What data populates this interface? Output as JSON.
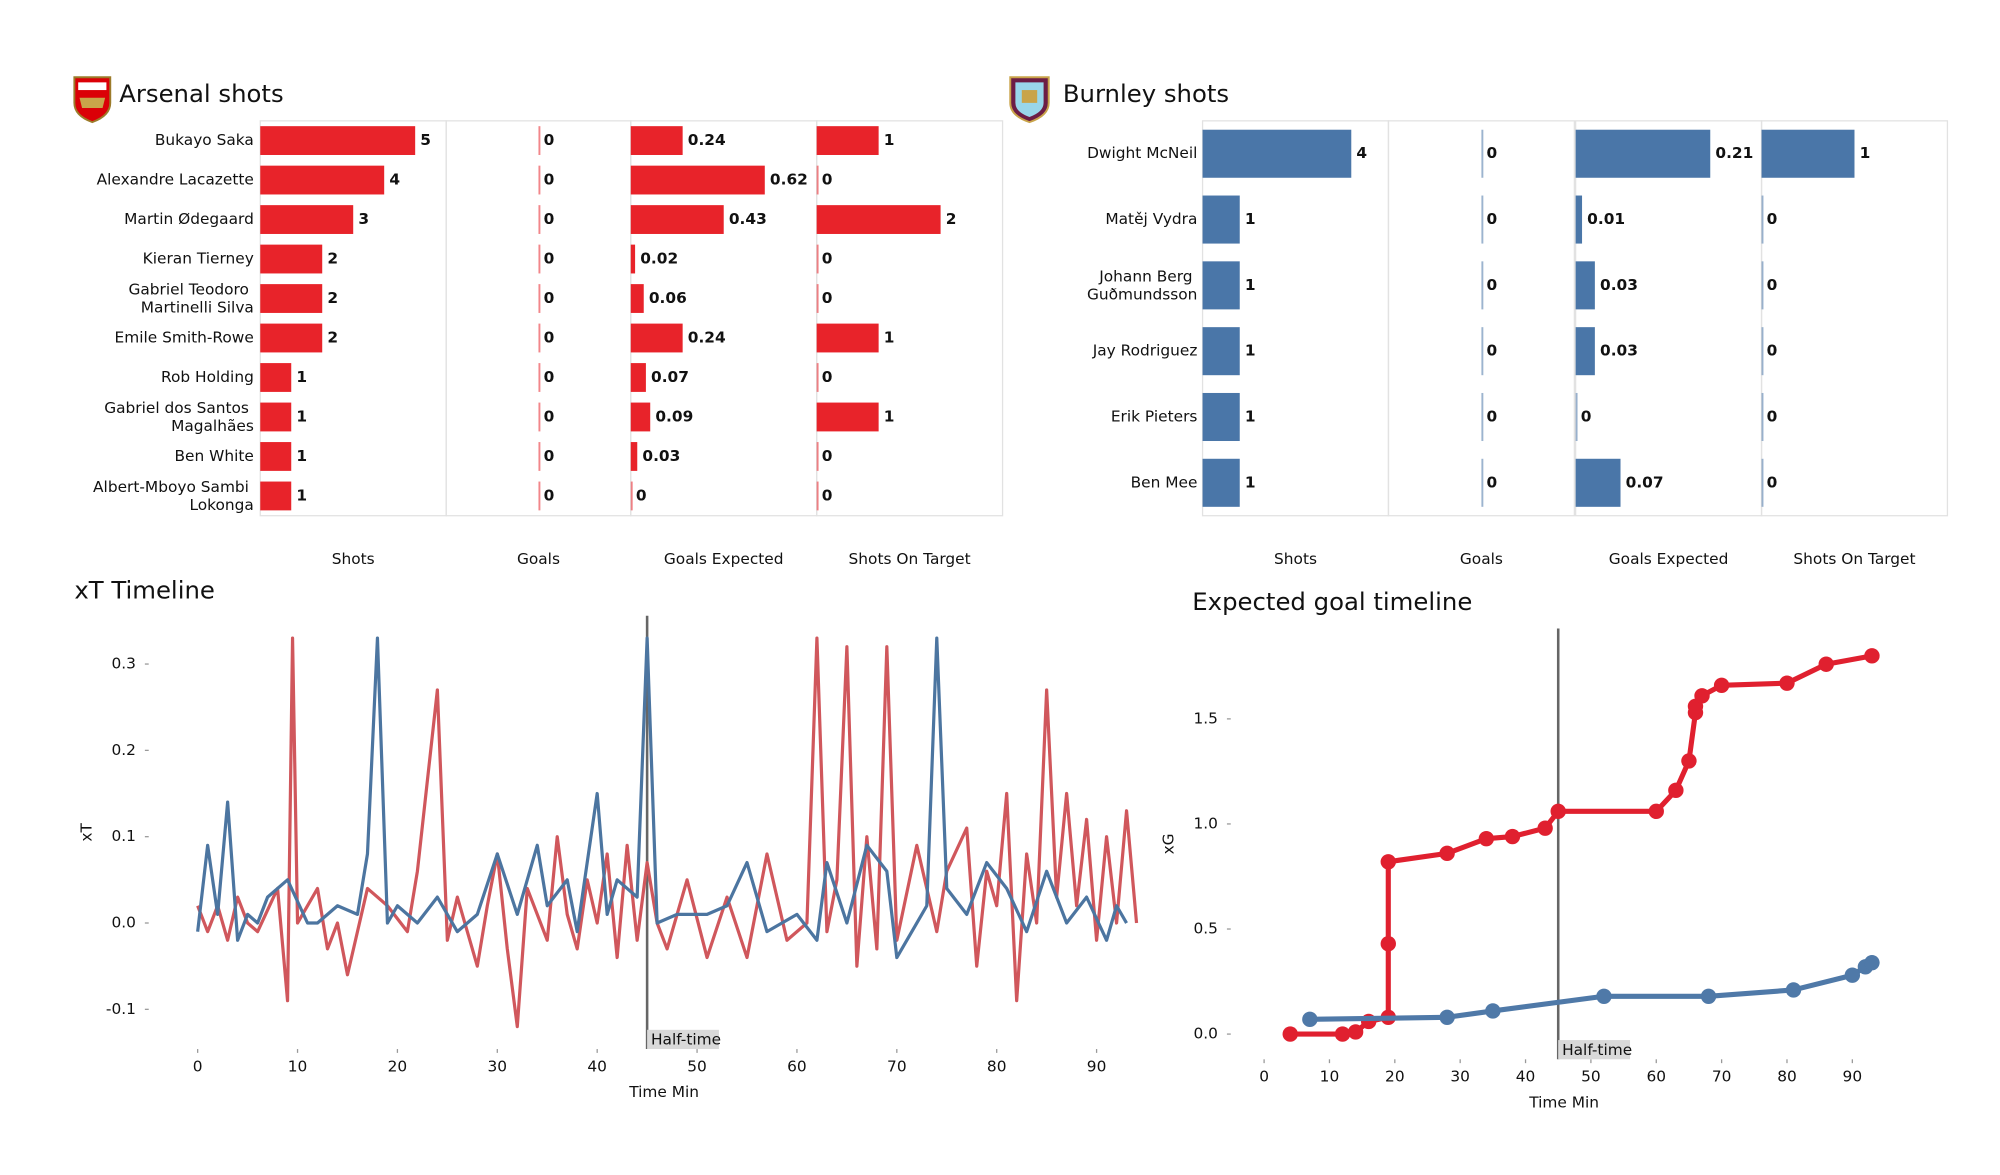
{
  "chart_data": [
    {
      "type": "bar",
      "title": "Arsenal shots",
      "color": "#e8232a",
      "categories": [
        "Bukayo Saka",
        "Alexandre Lacazette",
        "Martin Ødegaard",
        "Kieran Tierney",
        "Gabriel Teodoro Martinelli Silva",
        "Emile Smith-Rowe",
        "Rob Holding",
        "Gabriel dos Santos Magalhães",
        "Ben White",
        "Albert-Mboyo Sambi Lokonga"
      ],
      "panels": [
        {
          "name": "Shots",
          "xlim": [
            0,
            6
          ],
          "values": [
            5,
            4,
            3,
            2,
            2,
            2,
            1,
            1,
            1,
            1
          ]
        },
        {
          "name": "Goals",
          "xlim": [
            -1,
            1
          ],
          "values": [
            0,
            0,
            0,
            0,
            0,
            0,
            0,
            0,
            0,
            0
          ]
        },
        {
          "name": "Goals Expected",
          "xlim": [
            0,
            0.86
          ],
          "values": [
            0.24,
            0.62,
            0.43,
            0.02,
            0.06,
            0.24,
            0.07,
            0.09,
            0.03,
            0
          ]
        },
        {
          "name": "Shots On Target",
          "xlim": [
            0,
            3
          ],
          "values": [
            1,
            0,
            2,
            0,
            0,
            1,
            0,
            1,
            0,
            0
          ]
        }
      ]
    },
    {
      "type": "bar",
      "title": "Burnley shots",
      "color": "#4a76a8",
      "categories": [
        "Dwight McNeil",
        "Matěj Vydra",
        "Johann Berg Guðmundsson",
        "Jay Rodriguez",
        "Erik Pieters",
        "Ben Mee"
      ],
      "panels": [
        {
          "name": "Shots",
          "xlim": [
            0,
            5
          ],
          "values": [
            4,
            1,
            1,
            1,
            1,
            1
          ]
        },
        {
          "name": "Goals",
          "xlim": [
            -1,
            1
          ],
          "values": [
            0,
            0,
            0,
            0,
            0,
            0
          ]
        },
        {
          "name": "Goals Expected",
          "xlim": [
            0,
            0.29
          ],
          "values": [
            0.21,
            0.01,
            0.03,
            0.03,
            0,
            0.07
          ]
        },
        {
          "name": "Shots On Target",
          "xlim": [
            0,
            2
          ],
          "values": [
            1,
            0,
            0,
            0,
            0,
            0
          ]
        }
      ]
    },
    {
      "type": "line",
      "title": "xT Timeline",
      "xlabel": "Time Min",
      "ylabel": "xT",
      "xlim": [
        -4.9,
        98.3
      ],
      "ylim": [
        -0.146,
        0.356
      ],
      "xticks": [
        0,
        10,
        20,
        30,
        40,
        50,
        60,
        70,
        80,
        90
      ],
      "yticks": [
        -0.1,
        {
          "value": 0,
          "label": "0.0"
        },
        0.1,
        0.2,
        0.3
      ],
      "markers": false,
      "annotations": [
        {
          "x": 45,
          "text": "Half-time"
        }
      ],
      "series": [
        {
          "color": "#d0575c",
          "x": [
            0,
            1,
            2,
            3,
            4,
            5,
            6,
            8,
            9,
            9.5,
            10,
            12,
            13,
            14,
            15,
            17,
            19,
            21,
            22,
            24,
            25,
            26,
            28,
            29,
            30,
            31,
            32,
            33,
            35,
            36,
            37,
            38,
            39,
            40,
            41,
            42,
            43,
            44,
            45,
            46,
            47,
            49,
            51,
            53,
            55,
            57,
            59,
            61,
            62,
            63,
            64,
            65,
            66,
            67,
            68,
            69,
            70,
            72,
            74,
            75,
            77,
            78,
            79,
            80,
            81,
            82,
            83,
            84,
            85,
            86,
            87,
            88,
            89,
            90,
            91,
            92,
            93,
            94
          ],
          "values": [
            0.02,
            -0.01,
            0.02,
            -0.02,
            0.03,
            0.0,
            -0.01,
            0.04,
            -0.09,
            0.33,
            0.0,
            0.04,
            -0.03,
            0.0,
            -0.06,
            0.04,
            0.02,
            -0.01,
            0.06,
            0.27,
            -0.02,
            0.03,
            -0.05,
            0.02,
            0.08,
            -0.03,
            -0.12,
            0.04,
            -0.02,
            0.1,
            0.01,
            -0.03,
            0.05,
            0.0,
            0.08,
            -0.04,
            0.09,
            -0.02,
            0.07,
            0.0,
            -0.03,
            0.05,
            -0.04,
            0.03,
            -0.04,
            0.08,
            -0.02,
            0.0,
            0.33,
            -0.01,
            0.05,
            0.32,
            -0.05,
            0.1,
            -0.03,
            0.32,
            -0.02,
            0.09,
            -0.01,
            0.06,
            0.11,
            -0.05,
            0.06,
            0.02,
            0.15,
            -0.09,
            0.08,
            0.0,
            0.27,
            0.03,
            0.15,
            0.02,
            0.12,
            -0.02,
            0.1,
            0.0,
            0.13,
            0.0
          ]
        },
        {
          "color": "#4c75a0",
          "x": [
            0,
            1,
            2,
            3,
            4,
            5,
            6,
            7,
            9,
            11,
            12,
            14,
            16,
            17,
            18,
            19,
            20,
            22,
            24,
            26,
            28,
            30,
            32,
            34,
            35,
            37,
            38,
            40,
            41,
            42,
            44,
            45,
            46,
            48,
            51,
            53,
            55,
            57,
            60,
            62,
            63,
            65,
            67,
            69,
            70,
            72,
            73,
            74,
            75,
            77,
            79,
            81,
            83,
            85,
            87,
            89,
            91,
            92,
            93
          ],
          "values": [
            -0.01,
            0.09,
            0.01,
            0.14,
            -0.02,
            0.01,
            0.0,
            0.03,
            0.05,
            0.0,
            0.0,
            0.02,
            0.01,
            0.08,
            0.33,
            0.0,
            0.02,
            0.0,
            0.03,
            -0.01,
            0.01,
            0.08,
            0.01,
            0.09,
            0.02,
            0.05,
            -0.01,
            0.15,
            0.01,
            0.05,
            0.03,
            0.33,
            0.0,
            0.01,
            0.01,
            0.02,
            0.07,
            -0.01,
            0.01,
            -0.02,
            0.07,
            0.0,
            0.09,
            0.06,
            -0.04,
            0.0,
            0.02,
            0.33,
            0.04,
            0.01,
            0.07,
            0.04,
            -0.01,
            0.06,
            0.0,
            0.03,
            -0.02,
            0.02,
            0.0
          ]
        }
      ]
    },
    {
      "type": "line",
      "title": "Expected goal timeline",
      "xlabel": "Time Min",
      "ylabel": "xG",
      "xlim": [
        -5.1,
        96.9
      ],
      "ylim": [
        -0.12,
        1.93
      ],
      "xticks": [
        0,
        10,
        20,
        30,
        40,
        50,
        60,
        70,
        80,
        90
      ],
      "yticks": [
        {
          "value": 0,
          "label": "0.0"
        },
        0.5,
        {
          "value": 1,
          "label": "1.0"
        },
        1.5
      ],
      "markers": true,
      "annotations": [
        {
          "x": 45,
          "text": "Half-time"
        }
      ],
      "series": [
        {
          "color": "#e0202f",
          "x": [
            4,
            12,
            14,
            16,
            19,
            19,
            19,
            28,
            34,
            38,
            43,
            45,
            60,
            63,
            65,
            66,
            66,
            67,
            70,
            80,
            86,
            93
          ],
          "values": [
            0.0,
            0.0,
            0.01,
            0.06,
            0.08,
            0.43,
            0.82,
            0.86,
            0.93,
            0.94,
            0.98,
            1.06,
            1.06,
            1.16,
            1.3,
            1.53,
            1.56,
            1.61,
            1.66,
            1.67,
            1.76,
            1.8
          ]
        },
        {
          "color": "#4f79a8",
          "x": [
            7,
            28,
            35,
            52,
            68,
            81,
            90,
            92,
            93
          ],
          "values": [
            0.07,
            0.08,
            0.11,
            0.18,
            0.18,
            0.21,
            0.28,
            0.32,
            0.34
          ]
        }
      ]
    }
  ]
}
